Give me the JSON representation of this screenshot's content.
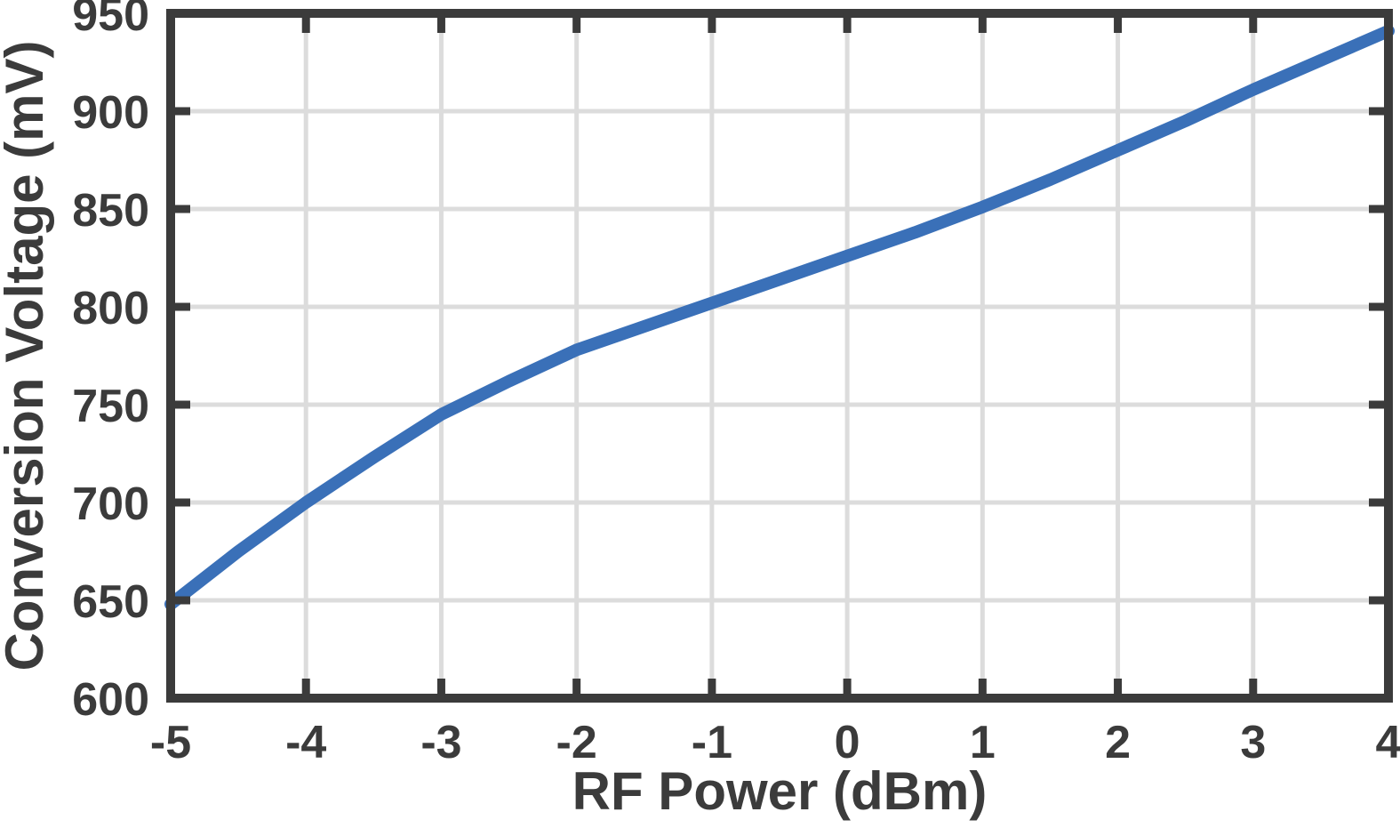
{
  "figure": {
    "background": "#ffffff"
  },
  "style": {
    "axis_color": "#3b3b3b",
    "grid_color": "#dcdcdc",
    "text_color": "#3b3b3b",
    "axis_line_width": 10,
    "grid_line_width": 5,
    "tick_length": 22,
    "tick_width": 9,
    "series_line_width": 14
  },
  "chart_data": {
    "type": "line",
    "title": "",
    "xlabel": "RF Power (dBm)",
    "ylabel": "Conversion Voltage (mV)",
    "xlim": [
      -5,
      4
    ],
    "ylim": [
      600,
      950
    ],
    "x_ticks": [
      -5,
      -4,
      -3,
      -2,
      -1,
      0,
      1,
      2,
      3,
      4
    ],
    "y_ticks": [
      600,
      650,
      700,
      750,
      800,
      850,
      900,
      950
    ],
    "grid": true,
    "legend": "none",
    "series": [
      {
        "name": "conversion-voltage",
        "color": "#3a70b8",
        "x": [
          -5,
          -4.5,
          -4,
          -3.5,
          -3,
          -2.5,
          -2,
          -1.5,
          -1,
          -0.5,
          0,
          0.5,
          1,
          1.5,
          2,
          2.5,
          3,
          3.5,
          4
        ],
        "y": [
          648,
          675,
          700,
          723,
          745,
          762,
          778,
          790,
          802,
          814,
          826,
          838,
          851,
          865,
          880,
          895,
          911,
          926,
          941
        ]
      }
    ]
  }
}
